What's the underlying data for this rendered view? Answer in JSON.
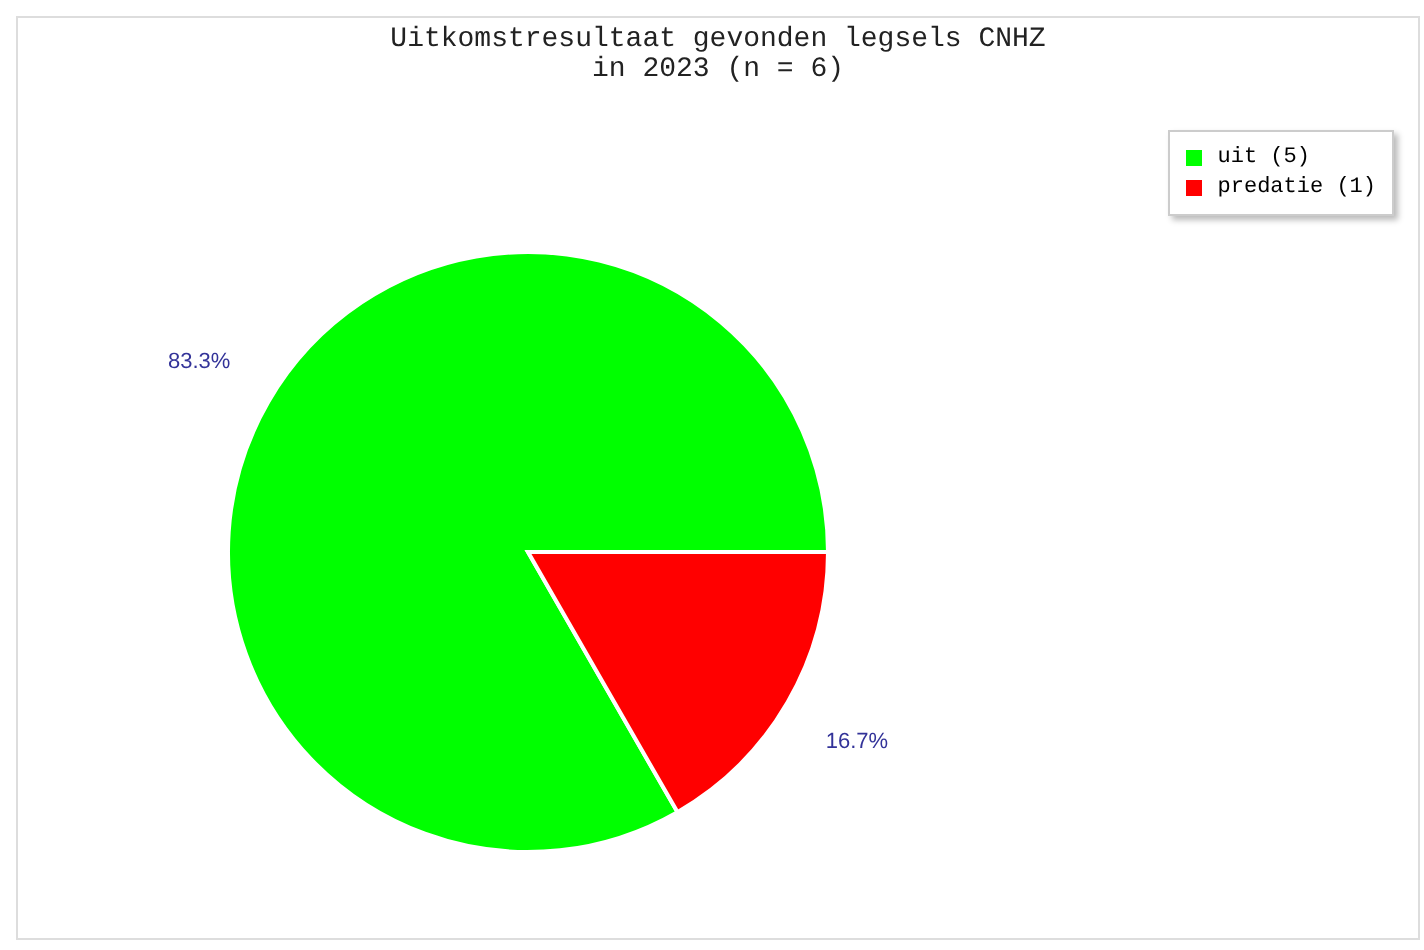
{
  "chart_data": {
    "type": "pie",
    "title": "Uitkomstresultaat gevonden legsels CNHZ\nin 2023 (n = 6)",
    "categories": [
      "uit (5)",
      "predatie (1)"
    ],
    "values": [
      83.3,
      16.7
    ],
    "colors": [
      "#00ff00",
      "#ff0000"
    ],
    "value_labels": [
      "83.3%",
      "16.7%"
    ],
    "legend": "top right"
  }
}
